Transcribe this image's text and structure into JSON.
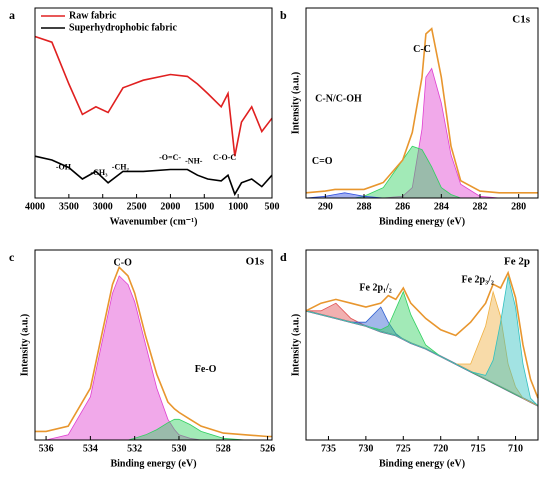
{
  "chart_data": [
    {
      "type": "line",
      "panel_label": "a",
      "xlabel": "Wavenumber (cm⁻¹)",
      "xlim": [
        4000,
        500
      ],
      "xticks": [
        4000,
        3500,
        3000,
        2500,
        2000,
        1500,
        1000,
        500
      ],
      "ylim": [
        0,
        100
      ],
      "legend": "upper left",
      "x": [
        4000,
        3750,
        3500,
        3300,
        3100,
        2920,
        2700,
        2400,
        2000,
        1750,
        1600,
        1450,
        1250,
        1150,
        1050,
        950,
        800,
        650,
        500
      ],
      "series": [
        {
          "name": "Raw fabric",
          "color": "#e02020",
          "values": [
            85,
            82,
            60,
            44,
            48,
            45,
            58,
            62,
            65,
            64,
            60,
            55,
            48,
            55,
            22,
            40,
            48,
            35,
            42
          ]
        },
        {
          "name": "Superhydrophobic fabric",
          "color": "#000000",
          "values": [
            22,
            20,
            16,
            10,
            14,
            8,
            14,
            14,
            15,
            15,
            12,
            10,
            9,
            12,
            2,
            8,
            10,
            6,
            12
          ]
        }
      ],
      "annotations": [
        "-OH",
        "-CH₃",
        "-CH₂",
        "-O=C-",
        "-NH-",
        "C-O-C"
      ]
    },
    {
      "type": "line",
      "panel_label": "b",
      "title": "C1s",
      "xlabel": "Binding energy (eV)",
      "ylabel": "Intensity (a.u.)",
      "xlim": [
        291,
        279
      ],
      "xticks": [
        290,
        288,
        286,
        284,
        282,
        280
      ],
      "ylim": [
        0,
        110
      ],
      "x": [
        291,
        290,
        289.5,
        289,
        288.5,
        288,
        287,
        286,
        285.5,
        285,
        284.8,
        284.5,
        284,
        283.5,
        283,
        282,
        281,
        280,
        279
      ],
      "series": [
        {
          "color": "#e040d0",
          "fill": true,
          "values": [
            0,
            0,
            0,
            0,
            0,
            0,
            0,
            1,
            6,
            40,
            70,
            75,
            55,
            25,
            8,
            1,
            0,
            0,
            0
          ]
        },
        {
          "color": "#30d060",
          "fill": true,
          "values": [
            0,
            0,
            0,
            0,
            0,
            1,
            6,
            22,
            30,
            28,
            24,
            18,
            6,
            2,
            0,
            0,
            0,
            0,
            0
          ]
        },
        {
          "color": "#3050e0",
          "fill": true,
          "values": [
            0,
            1,
            2,
            3,
            2,
            1,
            0,
            0,
            0,
            0,
            0,
            0,
            0,
            0,
            0,
            0,
            0,
            0,
            0
          ]
        },
        {
          "color": "#e8962e",
          "values": [
            3,
            4,
            5,
            5,
            5,
            5,
            9,
            22,
            38,
            70,
            95,
            98,
            70,
            30,
            10,
            4,
            3,
            3,
            3
          ]
        }
      ],
      "annotations": [
        "C-C",
        "C-N/C-OH",
        "C=O"
      ]
    },
    {
      "type": "line",
      "panel_label": "c",
      "title": "O1s",
      "xlabel": "Binding energy (eV)",
      "ylabel": "Intensity (a.u.)",
      "xlim": [
        536.5,
        525.8
      ],
      "xticks": [
        536,
        534,
        532,
        530,
        528,
        526
      ],
      "ylim": [
        0,
        110
      ],
      "x": [
        536.5,
        536,
        535,
        534,
        533.5,
        533,
        532.7,
        532.3,
        532,
        531.5,
        531,
        530.5,
        530.2,
        530,
        529.5,
        529,
        528,
        527,
        526,
        525.8
      ],
      "series": [
        {
          "color": "#e040d0",
          "fill": true,
          "values": [
            0,
            0,
            3,
            25,
            55,
            85,
            95,
            90,
            80,
            55,
            30,
            12,
            6,
            3,
            1,
            0,
            0,
            0,
            0,
            0
          ]
        },
        {
          "color": "#30d060",
          "fill": true,
          "values": [
            0,
            0,
            0,
            0,
            0,
            0,
            0,
            0,
            1,
            3,
            6,
            10,
            12,
            12,
            9,
            5,
            1,
            0,
            0,
            0
          ]
        },
        {
          "color": "#e8962e",
          "values": [
            5,
            5,
            8,
            30,
            60,
            90,
            100,
            95,
            85,
            60,
            38,
            22,
            18,
            16,
            12,
            8,
            4,
            3,
            2,
            2
          ]
        }
      ],
      "annotations": [
        "C-O",
        "Fe-O"
      ]
    },
    {
      "type": "line",
      "panel_label": "d",
      "title": "Fe 2p",
      "xlabel": "Binding energy (eV)",
      "ylabel": "Intensity (a.u.)",
      "xlim": [
        738,
        707
      ],
      "xticks": [
        735,
        730,
        725,
        720,
        715,
        710
      ],
      "ylim": [
        0,
        100
      ],
      "fill_base": 0,
      "x": [
        738,
        736,
        734,
        732,
        730,
        728,
        727,
        726,
        725,
        724,
        722,
        720,
        718,
        716,
        714,
        713,
        712,
        711,
        710,
        709,
        708,
        707
      ],
      "series": [
        {
          "color": "#6a3d8a",
          "values": [
            68,
            66,
            64,
            62,
            60,
            57,
            56,
            55,
            53,
            51,
            48,
            44,
            40,
            36,
            32,
            30,
            28,
            26,
            24,
            22,
            20,
            18
          ]
        },
        {
          "color": "#e05050",
          "fill": true,
          "values": [
            68,
            68,
            72,
            64,
            60,
            57,
            56,
            55,
            53,
            51,
            48,
            44,
            40,
            36,
            32,
            30,
            28,
            26,
            24,
            22,
            20,
            18
          ]
        },
        {
          "color": "#3060d0",
          "fill": true,
          "values": [
            68,
            66,
            64,
            62,
            62,
            70,
            62,
            56,
            53,
            51,
            48,
            44,
            40,
            36,
            32,
            30,
            28,
            26,
            24,
            22,
            20,
            18
          ]
        },
        {
          "color": "#30d060",
          "fill": true,
          "values": [
            68,
            66,
            64,
            62,
            60,
            58,
            60,
            69,
            78,
            66,
            50,
            44,
            40,
            36,
            32,
            30,
            28,
            26,
            24,
            22,
            20,
            18
          ]
        },
        {
          "color": "#f0b040",
          "fill": true,
          "values": [
            68,
            66,
            64,
            62,
            60,
            57,
            56,
            55,
            53,
            51,
            48,
            44,
            40,
            40,
            60,
            78,
            65,
            40,
            28,
            22,
            20,
            18
          ]
        },
        {
          "color": "#30c0c0",
          "fill": true,
          "values": [
            68,
            66,
            64,
            62,
            60,
            57,
            56,
            55,
            53,
            51,
            48,
            44,
            40,
            36,
            34,
            42,
            62,
            86,
            70,
            40,
            22,
            18
          ]
        },
        {
          "color": "#e8962e",
          "values": [
            68,
            72,
            74,
            72,
            70,
            72,
            76,
            74,
            80,
            72,
            64,
            58,
            55,
            62,
            72,
            82,
            80,
            88,
            75,
            50,
            32,
            22
          ]
        }
      ],
      "annotations": [
        "Fe 2p₁/₂",
        "Fe 2p₃/₂"
      ]
    }
  ]
}
